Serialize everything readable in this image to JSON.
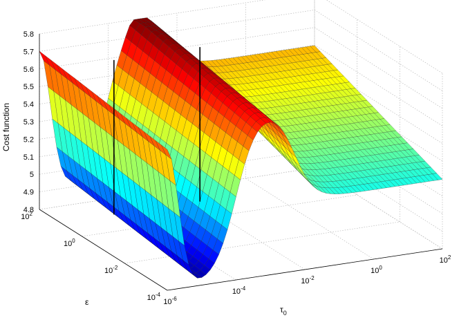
{
  "chart_data": {
    "type": "surface3d",
    "zlabel": "Cost function",
    "xlabel": "τ",
    "xlabel_subscript": "0",
    "ylabel": "ε",
    "zlim": [
      4.8,
      5.8
    ],
    "z_ticks": [
      "4.8",
      "4.9",
      "5",
      "5.1",
      "5.2",
      "5.3",
      "5.4",
      "5.5",
      "5.6",
      "5.7",
      "5.8"
    ],
    "tau_ticks": [
      {
        "base": "10",
        "exp": "-6"
      },
      {
        "base": "10",
        "exp": "-4"
      },
      {
        "base": "10",
        "exp": "-2"
      },
      {
        "base": "10",
        "exp": "0"
      },
      {
        "base": "10",
        "exp": "2"
      }
    ],
    "eps_ticks": [
      {
        "base": "10",
        "exp": "2"
      },
      {
        "base": "10",
        "exp": "0"
      },
      {
        "base": "10",
        "exp": "-2"
      },
      {
        "base": "10",
        "exp": "-4"
      }
    ],
    "tau_range_log10": [
      -6,
      2
    ],
    "eps_range_log10": [
      -4,
      2
    ],
    "grid": true,
    "colormap": "jet",
    "markers": [
      {
        "log10_tau": -4.7,
        "log10_eps": 0.6,
        "z_bottom": 4.84,
        "z_top": 5.72
      },
      {
        "log10_tau": -2.2,
        "log10_eps": 0.6,
        "z_bottom": 4.84,
        "z_top": 5.72
      }
    ]
  }
}
